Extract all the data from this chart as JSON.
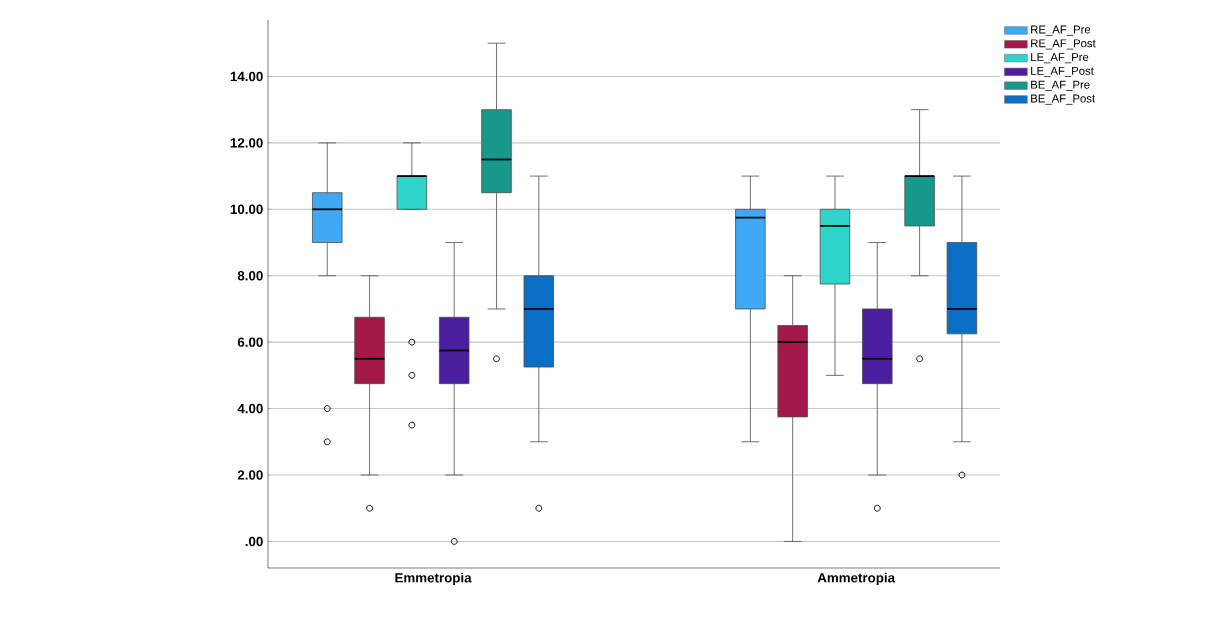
{
  "chart_data": {
    "type": "box",
    "categories": [
      "Emmetropia",
      "Ammetropia"
    ],
    "ylim": [
      -0.8,
      15.7
    ],
    "yticks": [
      {
        "value": 0,
        "label": ".00"
      },
      {
        "value": 2,
        "label": "2.00"
      },
      {
        "value": 4,
        "label": "4.00"
      },
      {
        "value": 6,
        "label": "6.00"
      },
      {
        "value": 8,
        "label": "8.00"
      },
      {
        "value": 10,
        "label": "10.00"
      },
      {
        "value": 12,
        "label": "12.00"
      },
      {
        "value": 14,
        "label": "14.00"
      }
    ],
    "grid": "y",
    "legend": "top right",
    "marker": "circle",
    "series": [
      {
        "name": "RE_AF_Pre",
        "color": "#3fa9f5",
        "boxes": [
          {
            "low": 8,
            "q1": 9,
            "median": 10,
            "q3": 10.5,
            "high": 12,
            "outliers": [
              4,
              3
            ]
          },
          {
            "low": 3,
            "q1": 7,
            "median": 9.75,
            "q3": 10,
            "high": 11
          }
        ]
      },
      {
        "name": "RE_AF_Post",
        "color": "#a3174a",
        "boxes": [
          {
            "low": 2,
            "q1": 4.75,
            "median": 5.5,
            "q3": 6.75,
            "high": 8,
            "outliers": [
              1
            ]
          },
          {
            "low": 0,
            "q1": 3.75,
            "median": 6,
            "q3": 6.5,
            "high": 8
          }
        ]
      },
      {
        "name": "LE_AF_Pre",
        "color": "#2ed3c9",
        "boxes": [
          {
            "low": 10,
            "q1": 10,
            "median": 11,
            "q3": 11,
            "high": 12,
            "outliers": [
              6,
              5,
              3.5
            ]
          },
          {
            "low": 5,
            "q1": 7.75,
            "median": 9.5,
            "q3": 10,
            "high": 11
          }
        ]
      },
      {
        "name": "LE_AF_Post",
        "color": "#4b1ea0",
        "boxes": [
          {
            "low": 2,
            "q1": 4.75,
            "median": 5.75,
            "q3": 6.75,
            "high": 9,
            "outliers": [
              0
            ]
          },
          {
            "low": 2,
            "q1": 4.75,
            "median": 5.5,
            "q3": 7,
            "high": 9,
            "outliers": [
              1
            ]
          }
        ]
      },
      {
        "name": "BE_AF_Pre",
        "color": "#17988a",
        "boxes": [
          {
            "low": 7,
            "q1": 10.5,
            "median": 11.5,
            "q3": 13,
            "high": 15,
            "outliers": [
              5.5
            ]
          },
          {
            "low": 8,
            "q1": 9.5,
            "median": 11,
            "q3": 11,
            "high": 13,
            "outliers": [
              5.5
            ]
          }
        ]
      },
      {
        "name": "BE_AF_Post",
        "color": "#0a6fc4",
        "boxes": [
          {
            "low": 3,
            "q1": 5.25,
            "median": 7,
            "q3": 8,
            "high": 11,
            "outliers": [
              1
            ]
          },
          {
            "low": 3,
            "q1": 6.25,
            "median": 7,
            "q3": 9,
            "high": 11,
            "outliers": [
              2
            ]
          }
        ]
      }
    ]
  }
}
